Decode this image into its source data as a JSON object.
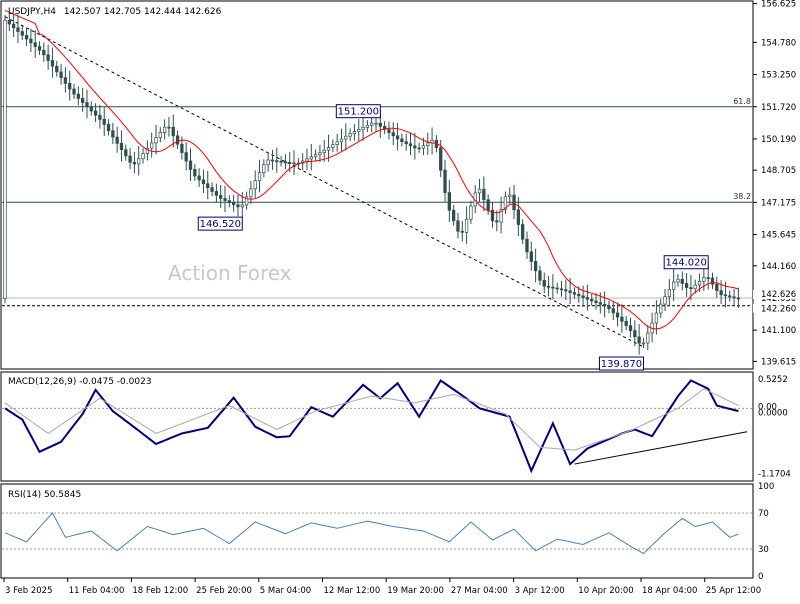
{
  "chart_data": [
    {
      "type": "candlestick",
      "panel": "price",
      "title": "USDJPY,H4",
      "ohlc_header": "142.507 142.705 142.444 142.626",
      "watermark": "Action Forex",
      "x_tick_labels": [
        "3 Feb 2025",
        "11 Feb 04:00",
        "18 Feb 12:00",
        "25 Feb 20:00",
        "5 Mar 04:00",
        "12 Mar 12:00",
        "19 Mar 20:00",
        "27 Mar 04:00",
        "3 Apr 12:00",
        "10 Apr 20:00",
        "18 Apr 04:00",
        "25 Apr 12:00"
      ],
      "y_tick_labels": [
        "156.625",
        "154.780",
        "153.250",
        "151.720",
        "150.190",
        "148.705",
        "147.175",
        "145.645",
        "144.160",
        "142.630",
        "141.100",
        "139.615"
      ],
      "ylim": [
        139.3,
        156.7
      ],
      "moving_average_color": "#ff0000",
      "candle_color": "#2f4f4f",
      "fib_levels": [
        {
          "label": "61.8",
          "value": 151.72
        },
        {
          "label": "38.2",
          "value": 147.18
        }
      ],
      "current_price_label": "142.626",
      "dashed_level_label": "142.260",
      "annotations": [
        "151.200",
        "146.520",
        "144.020",
        "139.870"
      ],
      "key_points": [
        {
          "time_index": 0,
          "value": 155.9
        },
        {
          "time_index": 9,
          "value": 154.3
        },
        {
          "time_index": 16,
          "value": 152.4
        },
        {
          "time_index": 23,
          "value": 151.0
        },
        {
          "time_index": 30,
          "value": 148.9
        },
        {
          "time_index": 38,
          "value": 150.9
        },
        {
          "time_index": 44,
          "value": 148.5
        },
        {
          "time_index": 50,
          "value": 147.4
        },
        {
          "time_index": 55,
          "value": 146.9
        },
        {
          "time_index": 61,
          "value": 149.2
        },
        {
          "time_index": 68,
          "value": 149.0
        },
        {
          "time_index": 74,
          "value": 149.6
        },
        {
          "time_index": 80,
          "value": 150.4
        },
        {
          "time_index": 86,
          "value": 151.0
        },
        {
          "time_index": 92,
          "value": 150.1
        },
        {
          "time_index": 96,
          "value": 149.7
        },
        {
          "time_index": 100,
          "value": 150.2
        },
        {
          "time_index": 103,
          "value": 147.0
        },
        {
          "time_index": 106,
          "value": 145.5
        },
        {
          "time_index": 110,
          "value": 148.0
        },
        {
          "time_index": 114,
          "value": 146.0
        },
        {
          "time_index": 117,
          "value": 147.8
        },
        {
          "time_index": 121,
          "value": 145.0
        },
        {
          "time_index": 125,
          "value": 143.2
        },
        {
          "time_index": 130,
          "value": 143.0
        },
        {
          "time_index": 135,
          "value": 142.6
        },
        {
          "time_index": 140,
          "value": 142.2
        },
        {
          "time_index": 145,
          "value": 141.2
        },
        {
          "time_index": 148,
          "value": 140.3
        },
        {
          "time_index": 152,
          "value": 142.2
        },
        {
          "time_index": 156,
          "value": 143.6
        },
        {
          "time_index": 159,
          "value": 143.0
        },
        {
          "time_index": 163,
          "value": 143.7
        },
        {
          "time_index": 166,
          "value": 142.8
        },
        {
          "time_index": 170,
          "value": 142.6
        }
      ]
    },
    {
      "type": "line",
      "panel": "macd",
      "title": "MACD(12,26,9) -0.0475 -0.0023",
      "y_tick_labels": [
        "0.5252",
        "0.00",
        "0.0000",
        "-1.1704"
      ],
      "ylim": [
        -1.17,
        0.525
      ],
      "series": [
        {
          "color": "#000080",
          "points": [
            [
              0,
              0.0
            ],
            [
              4,
              -0.2
            ],
            [
              8,
              -0.78
            ],
            [
              13,
              -0.6
            ],
            [
              18,
              -0.1
            ],
            [
              21,
              0.33
            ],
            [
              25,
              -0.05
            ],
            [
              31,
              -0.4
            ],
            [
              35,
              -0.64
            ],
            [
              41,
              -0.45
            ],
            [
              47,
              -0.35
            ],
            [
              53,
              0.19
            ],
            [
              58,
              -0.33
            ],
            [
              63,
              -0.52
            ],
            [
              66,
              -0.5
            ],
            [
              71,
              0.02
            ],
            [
              76,
              -0.15
            ],
            [
              83,
              0.42
            ],
            [
              87,
              0.18
            ],
            [
              91,
              0.45
            ],
            [
              96,
              -0.15
            ],
            [
              101,
              0.5
            ],
            [
              106,
              0.23
            ],
            [
              110,
              0.0
            ],
            [
              117,
              -0.15
            ],
            [
              122,
              -1.12
            ],
            [
              127,
              -0.27
            ],
            [
              131,
              -1.0
            ],
            [
              135,
              -0.72
            ],
            [
              143,
              -0.45
            ],
            [
              146,
              -0.38
            ],
            [
              150,
              -0.5
            ],
            [
              156,
              0.22
            ],
            [
              159,
              0.5
            ],
            [
              163,
              0.35
            ],
            [
              165,
              0.05
            ],
            [
              170,
              -0.05
            ]
          ]
        },
        {
          "color": "#a9a9a9",
          "points": [
            [
              0,
              0.1
            ],
            [
              10,
              -0.45
            ],
            [
              22,
              0.18
            ],
            [
              35,
              -0.45
            ],
            [
              52,
              0.05
            ],
            [
              63,
              -0.38
            ],
            [
              72,
              -0.05
            ],
            [
              85,
              0.22
            ],
            [
              95,
              0.1
            ],
            [
              104,
              0.25
            ],
            [
              116,
              -0.1
            ],
            [
              124,
              -0.7
            ],
            [
              132,
              -0.75
            ],
            [
              145,
              -0.4
            ],
            [
              156,
              0.0
            ],
            [
              162,
              0.35
            ],
            [
              170,
              0.05
            ]
          ]
        }
      ],
      "trendline": [
        [
          132,
          -1.0
        ],
        [
          172,
          -0.42
        ]
      ]
    },
    {
      "type": "line",
      "panel": "rsi",
      "title": "RSI(14) 50.5845",
      "y_tick_labels": [
        "100",
        "70",
        "30",
        "0"
      ],
      "ylim": [
        0,
        100
      ],
      "levels": [
        70,
        30
      ],
      "series": [
        {
          "color": "#4682b4",
          "points": [
            [
              0,
              48
            ],
            [
              5,
              38
            ],
            [
              11,
              70
            ],
            [
              14,
              43
            ],
            [
              20,
              50
            ],
            [
              26,
              28
            ],
            [
              33,
              55
            ],
            [
              39,
              46
            ],
            [
              46,
              53
            ],
            [
              52,
              36
            ],
            [
              58,
              60
            ],
            [
              65,
              47
            ],
            [
              71,
              59
            ],
            [
              77,
              53
            ],
            [
              84,
              61
            ],
            [
              90,
              55
            ],
            [
              97,
              50
            ],
            [
              103,
              38
            ],
            [
              108,
              60
            ],
            [
              113,
              40
            ],
            [
              118,
              52
            ],
            [
              123,
              28
            ],
            [
              128,
              41
            ],
            [
              134,
              35
            ],
            [
              140,
              48
            ],
            [
              145,
              33
            ],
            [
              148,
              25
            ],
            [
              153,
              48
            ],
            [
              157,
              64
            ],
            [
              160,
              55
            ],
            [
              164,
              60
            ],
            [
              168,
              43
            ],
            [
              172,
              50
            ]
          ]
        }
      ]
    }
  ]
}
